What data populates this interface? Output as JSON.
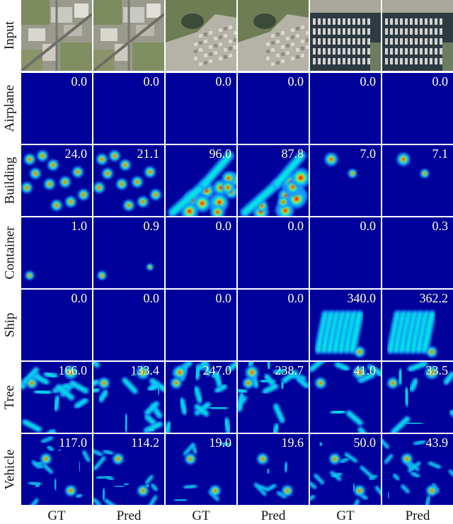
{
  "rows": [
    {
      "label": "Input",
      "type": "input",
      "scenes": [
        "urban",
        "urban",
        "park",
        "park",
        "marina",
        "marina"
      ],
      "counts": []
    },
    {
      "label": "Airplane",
      "type": "density",
      "counts": [
        "0.0",
        "0.0",
        "0.0",
        "0.0",
        "0.0",
        "0.0"
      ]
    },
    {
      "label": "Building",
      "type": "density",
      "counts": [
        "24.0",
        "21.1",
        "96.0",
        "87.8",
        "7.0",
        "7.1"
      ]
    },
    {
      "label": "Container",
      "type": "density",
      "counts": [
        "1.0",
        "0.9",
        "0.0",
        "0.0",
        "0.0",
        "0.3"
      ]
    },
    {
      "label": "Ship",
      "type": "density",
      "counts": [
        "0.0",
        "0.0",
        "0.0",
        "0.0",
        "340.0",
        "362.2"
      ]
    },
    {
      "label": "Tree",
      "type": "density",
      "counts": [
        "166.0",
        "133.4",
        "247.0",
        "238.7",
        "41.0",
        "33.5"
      ]
    },
    {
      "label": "Vehicle",
      "type": "density",
      "counts": [
        "117.0",
        "114.2",
        "19.0",
        "19.6",
        "50.0",
        "43.9"
      ]
    }
  ],
  "columns": [
    "GT",
    "Pred",
    "GT",
    "Pred",
    "GT",
    "Pred"
  ],
  "colormap": {
    "background": "#00009a",
    "low": "#1e88ff",
    "mid": "#00e5e5",
    "high": "#ffee00",
    "peak": "#e00000"
  }
}
